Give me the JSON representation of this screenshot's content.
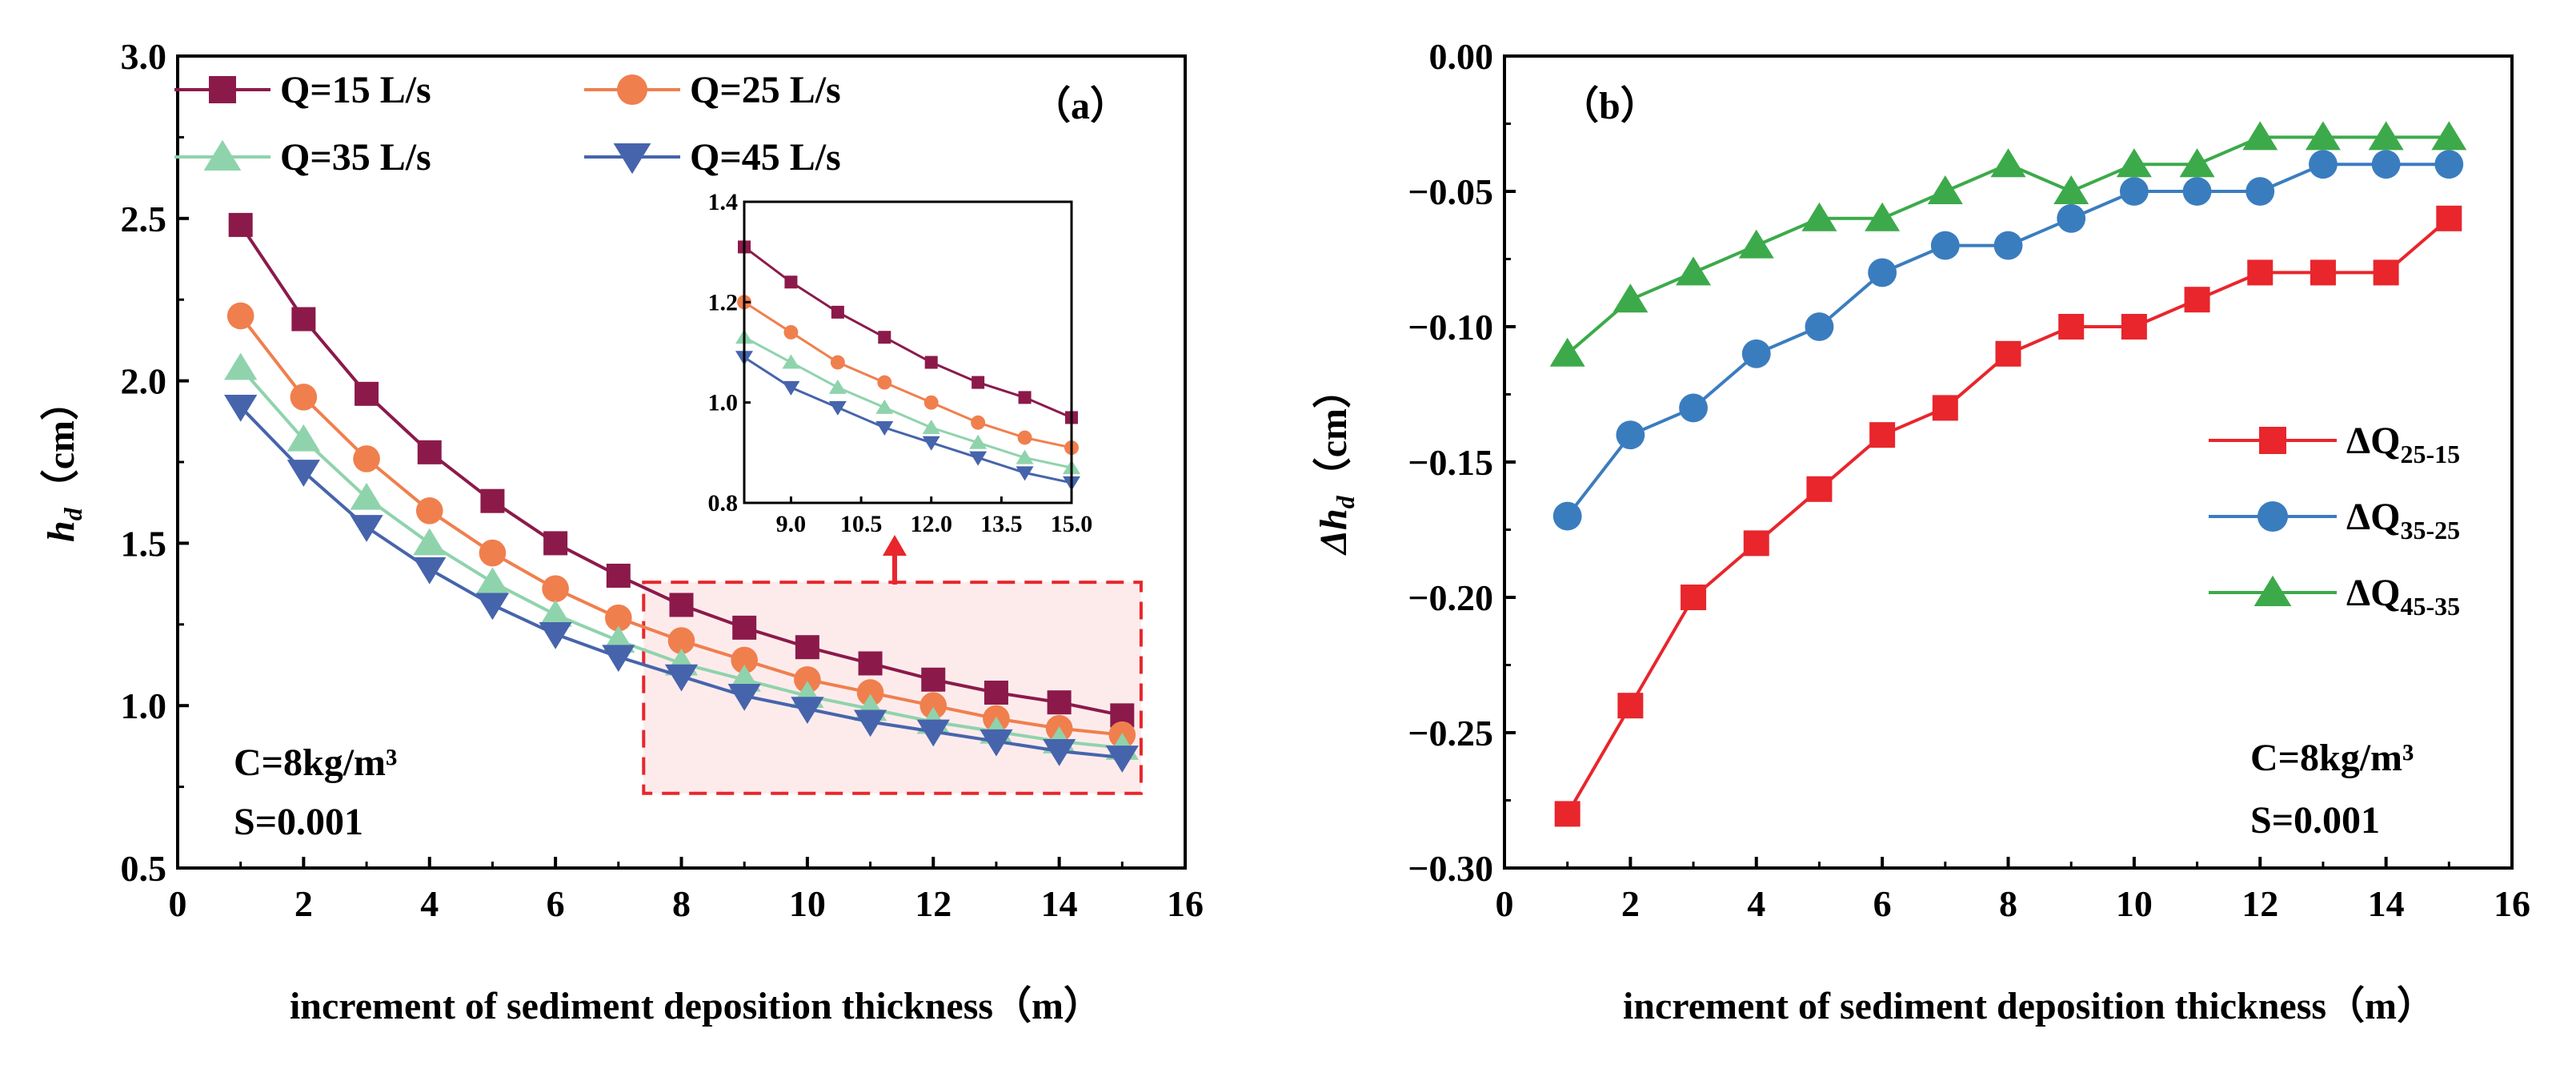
{
  "chart_data": [
    {
      "type": "line",
      "panel_label": "（a）",
      "xlabel": "increment of sediment deposition thickness（m）",
      "ylabel_main": "h",
      "ylabel_sub": "d",
      "ylabel_unit": "（cm）",
      "xlim": [
        0,
        16
      ],
      "ylim": [
        0.5,
        3.0
      ],
      "xticks": [
        "0",
        "2",
        "4",
        "6",
        "8",
        "10",
        "12",
        "14",
        "16"
      ],
      "yticks": [
        "0.5",
        "1.0",
        "1.5",
        "2.0",
        "2.5",
        "3.0"
      ],
      "x": [
        1,
        2,
        3,
        4,
        5,
        6,
        7,
        8,
        9,
        10,
        11,
        12,
        13,
        14,
        15
      ],
      "series": [
        {
          "name": "Q=15 L/s",
          "color": "#8B1A4A",
          "marker": "square",
          "values": [
            2.48,
            2.19,
            1.96,
            1.78,
            1.63,
            1.5,
            1.4,
            1.31,
            1.24,
            1.18,
            1.13,
            1.08,
            1.04,
            1.01,
            0.97
          ]
        },
        {
          "name": "Q=25 L/s",
          "color": "#F07F4E",
          "marker": "circle",
          "values": [
            2.2,
            1.95,
            1.76,
            1.6,
            1.47,
            1.36,
            1.27,
            1.2,
            1.14,
            1.08,
            1.04,
            1.0,
            0.96,
            0.93,
            0.91
          ]
        },
        {
          "name": "Q=35 L/s",
          "color": "#8FD3AC",
          "marker": "triangle-up",
          "values": [
            2.04,
            1.82,
            1.64,
            1.5,
            1.38,
            1.28,
            1.2,
            1.13,
            1.08,
            1.03,
            0.99,
            0.95,
            0.92,
            0.89,
            0.87
          ]
        },
        {
          "name": "Q=45 L/s",
          "color": "#4664AC",
          "marker": "triangle-down",
          "values": [
            1.92,
            1.72,
            1.55,
            1.42,
            1.31,
            1.22,
            1.15,
            1.09,
            1.03,
            0.99,
            0.95,
            0.92,
            0.89,
            0.86,
            0.84
          ]
        }
      ],
      "annotations": [
        "C=8kg/m³",
        "S=0.001"
      ],
      "legend_position": "top-left",
      "highlight_box": {
        "xrange": [
          7.4,
          15.3
        ],
        "yrange": [
          0.73,
          1.38
        ]
      },
      "inset": {
        "xlim": [
          8.0,
          15.0
        ],
        "ylim": [
          0.8,
          1.4
        ],
        "xticks": [
          "9.0",
          "10.5",
          "12.0",
          "13.5",
          "15.0"
        ],
        "yticks": [
          "0.8",
          "1.0",
          "1.2",
          "1.4"
        ]
      }
    },
    {
      "type": "line",
      "panel_label": "（b）",
      "xlabel": "increment of sediment deposition thickness（m）",
      "ylabel_main": "Δh",
      "ylabel_sub": "d",
      "ylabel_unit": "（cm）",
      "xlim": [
        0,
        16
      ],
      "ylim": [
        -0.3,
        0.0
      ],
      "xticks": [
        "0",
        "2",
        "4",
        "6",
        "8",
        "10",
        "12",
        "14",
        "16"
      ],
      "yticks": [
        "0.00",
        "−0.05",
        "−0.10",
        "−0.15",
        "−0.20",
        "−0.25",
        "−0.30"
      ],
      "x": [
        1,
        2,
        3,
        4,
        5,
        6,
        7,
        8,
        9,
        10,
        11,
        12,
        13,
        14,
        15
      ],
      "series": [
        {
          "name": "ΔQ",
          "sub": "25-15",
          "color": "#E8262C",
          "marker": "square",
          "values": [
            -0.28,
            -0.24,
            -0.2,
            -0.18,
            -0.16,
            -0.14,
            -0.13,
            -0.11,
            -0.1,
            -0.1,
            -0.09,
            -0.08,
            -0.08,
            -0.08,
            -0.06
          ]
        },
        {
          "name": "ΔQ",
          "sub": "35-25",
          "color": "#3A7DBF",
          "marker": "circle",
          "values": [
            -0.17,
            -0.14,
            -0.13,
            -0.11,
            -0.1,
            -0.08,
            -0.07,
            -0.07,
            -0.06,
            -0.05,
            -0.05,
            -0.05,
            -0.04,
            -0.04,
            -0.04
          ]
        },
        {
          "name": "ΔQ",
          "sub": "45-35",
          "color": "#3CAA4A",
          "marker": "triangle-up",
          "values": [
            -0.11,
            -0.09,
            -0.08,
            -0.07,
            -0.06,
            -0.06,
            -0.05,
            -0.04,
            -0.05,
            -0.04,
            -0.04,
            -0.03,
            -0.03,
            -0.03,
            -0.03
          ]
        }
      ],
      "annotations": [
        "C=8kg/m³",
        "S=0.001"
      ],
      "legend_position": "right"
    }
  ]
}
